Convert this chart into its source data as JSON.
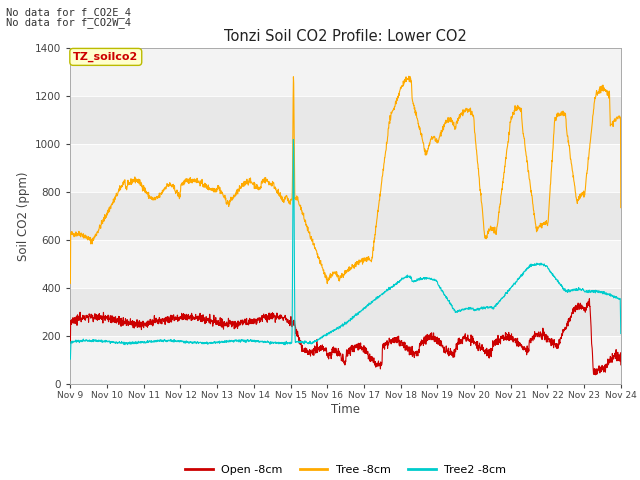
{
  "title": "Tonzi Soil CO2 Profile: Lower CO2",
  "ylabel": "Soil CO2 (ppm)",
  "xlabel": "Time",
  "top_note1": "No data for f_CO2E_4",
  "top_note2": "No data for f_CO2W_4",
  "legend_label": "TZ_soilco2",
  "ylim": [
    0,
    1400
  ],
  "xlim_days": [
    9,
    24
  ],
  "xtick_labels": [
    "Nov 9",
    "Nov 10",
    "Nov 11",
    "Nov 12",
    "Nov 13",
    "Nov 14",
    "Nov 15",
    "Nov 16",
    "Nov 17",
    "Nov 18",
    "Nov 19",
    "Nov 20",
    "Nov 21",
    "Nov 22",
    "Nov 23",
    "Nov 24"
  ],
  "fig_bg_color": "#ffffff",
  "plot_bg_color": "#e8e8e8",
  "line_colors": {
    "open": "#cc0000",
    "tree": "#ffaa00",
    "tree2": "#00cccc"
  },
  "legend_entries": [
    "Open -8cm",
    "Tree -8cm",
    "Tree2 -8cm"
  ]
}
